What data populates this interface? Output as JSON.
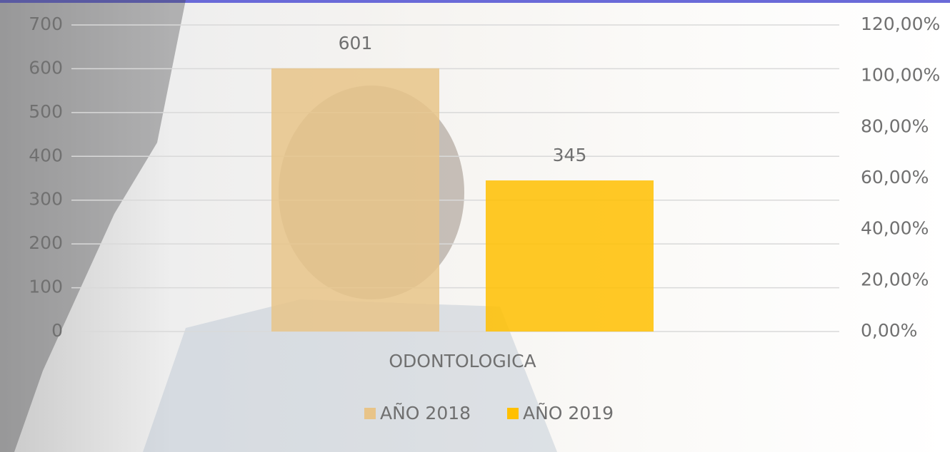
{
  "chart_data": {
    "type": "bar",
    "categories": [
      "ODONTOLOGICA"
    ],
    "series": [
      {
        "name": "AÑO 2018",
        "color": "#e8c488",
        "values": [
          601
        ]
      },
      {
        "name": "AÑO 2019",
        "color": "#ffc000",
        "values": [
          345
        ]
      }
    ],
    "ylim": [
      0,
      700
    ],
    "yticks": [
      0,
      100,
      200,
      300,
      400,
      500,
      600,
      700
    ],
    "y2lim": [
      0,
      120
    ],
    "y2ticks": [
      {
        "value": 0,
        "label": "0,00%"
      },
      {
        "value": 20,
        "label": "20,00%"
      },
      {
        "value": 40,
        "label": "40,00%"
      },
      {
        "value": 60,
        "label": "60,00%"
      },
      {
        "value": 80,
        "label": "80,00%"
      },
      {
        "value": 100,
        "label": "100,00%"
      },
      {
        "value": 120,
        "label": "120,00%"
      }
    ],
    "grid": true,
    "legend": "bottom"
  }
}
